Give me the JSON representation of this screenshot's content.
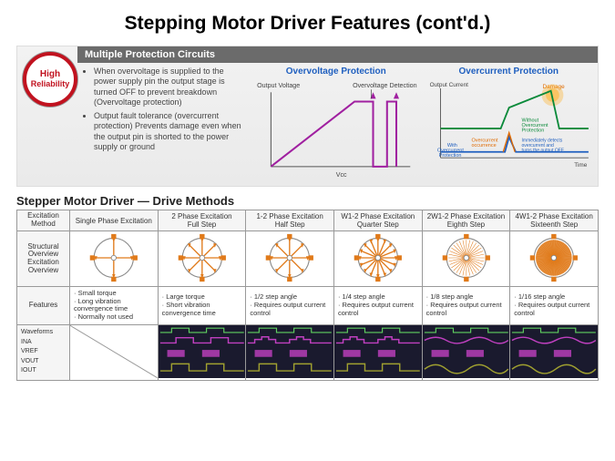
{
  "title": "Stepping Motor Driver Features (cont'd.)",
  "badge": {
    "line1": "High",
    "line2": "Reliability",
    "color": "#c1121f"
  },
  "panel": {
    "header": "Multiple Protection Circuits",
    "bullets": [
      "When overvoltage is supplied to the power supply pin the output stage is turned OFF to prevent breakdown (Overvoltage protection)",
      "Output fault tolerance (overcurrent protection) Prevents damage even when the output pin is shorted to the power supply or ground"
    ]
  },
  "chart_ov": {
    "title": "Overvoltage Protection",
    "title_color": "#1f5fbf",
    "label_output": "Output Voltage",
    "label_detect": "Overvoltage Detection",
    "axis_vcc": "Vcc",
    "line_color": "#a020a0",
    "bg": "#ffffff"
  },
  "chart_oc": {
    "title": "Overcurrent Protection",
    "title_color": "#1f5fbf",
    "label_output": "Output Current",
    "label_damage": "Damage",
    "label_without": "Without Overcurrent Protection",
    "label_without_color": "#0a8a3a",
    "label_with": "With Overcurrent Protection",
    "label_with_color": "#1f5fbf",
    "label_occ": "Overcurrent occurrence",
    "label_occ_color": "#e06a00",
    "label_detect": "Immediately detects overcurrent and turns the output OFF",
    "label_detect_color": "#1f5fbf",
    "axis_time": "Time",
    "line_without": "#0a8a3a",
    "line_with": "#1f5fbf",
    "line_occ": "#e06a00",
    "damage_glow": "#ffb020"
  },
  "table": {
    "section_title": "Stepper Motor Driver — Drive Methods",
    "row_headers": [
      "Excitation Method",
      "Structural Overview\nExcitation Overview",
      "Features",
      "Waveforms\nINA\nVREF\nVOUT\nIOUT"
    ],
    "columns": [
      {
        "header": "Single Phase Excitation",
        "spokes": 4,
        "color": "#e07a1a",
        "features": [
          "· Small torque",
          "· Long vibration convergence time",
          "· Normally not used"
        ],
        "wave": {
          "type": "square",
          "color": "#a0a030",
          "ref": "#c040c0"
        }
      },
      {
        "header": "2 Phase Excitation\nFull Step",
        "spokes": 8,
        "color": "#e07a1a",
        "features": [
          "· Large torque",
          "· Short vibration convergence time"
        ],
        "wave": {
          "type": "square",
          "color": "#a0a030",
          "ref": "#c040c0"
        }
      },
      {
        "header": "1-2 Phase Excitation\nHalf Step",
        "spokes": 8,
        "color": "#e07a1a",
        "features": [
          "· 1/2 step angle",
          "· Requires output current control"
        ],
        "wave": {
          "type": "step2",
          "color": "#a0a030",
          "ref": "#c040c0"
        }
      },
      {
        "header": "W1-2 Phase Excitation\nQuarter Step",
        "spokes": 16,
        "color": "#e07a1a",
        "features": [
          "· 1/4 step angle",
          "· Requires output current control"
        ],
        "wave": {
          "type": "step4",
          "color": "#a0a030",
          "ref": "#c040c0"
        }
      },
      {
        "header": "2W1-2 Phase Excitation\nEighth Step",
        "spokes": 32,
        "color": "#e07a1a",
        "features": [
          "· 1/8 step angle",
          "· Requires output current control"
        ],
        "wave": {
          "type": "sine",
          "color": "#a0a030",
          "ref": "#c040c0"
        }
      },
      {
        "header": "4W1-2 Phase Excitation\nSixteenth Step",
        "spokes": 64,
        "color": "#e07a1a",
        "fill": true,
        "features": [
          "· 1/16 step angle",
          "· Requires output current control"
        ],
        "wave": {
          "type": "sine",
          "color": "#a0a030",
          "ref": "#c040c0"
        }
      }
    ],
    "wave_bg": "#1a1a2e"
  }
}
